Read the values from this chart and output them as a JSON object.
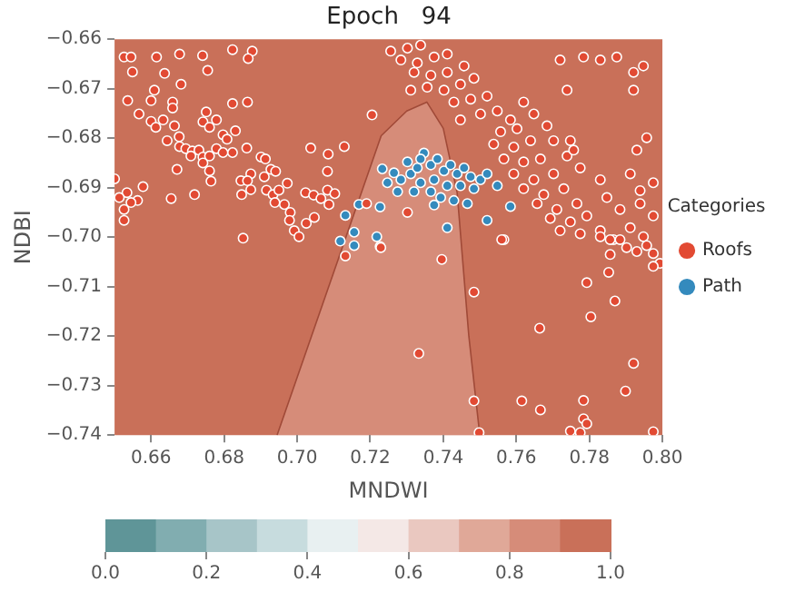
{
  "chart_data": {
    "type": "scatter",
    "title": "Epoch   94",
    "xlabel": "MNDWI",
    "ylabel": "NDBI",
    "legend_title": "Categories",
    "legend": "right",
    "xlim": [
      0.65,
      0.8
    ],
    "xticks": [
      0.66,
      0.68,
      {
        "value": 0.7,
        "label": "0.70"
      },
      0.72,
      0.74,
      0.76,
      0.78,
      {
        "value": 0.8,
        "label": "0.80"
      }
    ],
    "ylim": [
      -0.74,
      -0.66
    ],
    "yticks": [
      -0.74,
      -0.73,
      -0.72,
      -0.71,
      {
        "value": -0.7,
        "label": "−0.70"
      },
      -0.69,
      -0.68,
      -0.67,
      -0.66
    ],
    "clim": [
      0,
      1
    ],
    "cticks": [
      {
        "value": 0,
        "label": "0.0"
      },
      0.2,
      0.4,
      0.6,
      0.8,
      {
        "value": 1,
        "label": "1.0"
      }
    ],
    "series": [
      {
        "type": "area",
        "color": "#d68c79",
        "x": [
          0.6945,
          0.723,
          0.73,
          0.7355,
          0.74,
          0.7438,
          0.747,
          0.75
        ],
        "values": [
          -0.74,
          -0.6795,
          -0.6745,
          -0.6727,
          -0.678,
          -0.691,
          -0.72,
          -0.74
        ]
      },
      {
        "name": "Roofs",
        "color": "#e24a33",
        "marker": "circle",
        "x": [
          0.6526,
          0.6545,
          0.6615,
          0.6678,
          0.6741,
          0.6823,
          0.6877,
          0.6866,
          0.6549,
          0.6637,
          0.6755,
          0.6682,
          0.6609,
          0.6536,
          0.66,
          0.6659,
          0.6659,
          0.6823,
          0.6864,
          0.6567,
          0.6751,
          0.66,
          0.6633,
          0.6742,
          0.6779,
          0.6613,
          0.6664,
          0.676,
          0.6831,
          0.6677,
          0.6797,
          0.6644,
          0.6808,
          0.6678,
          0.6695,
          0.6713,
          0.6731,
          0.6709,
          0.6742,
          0.676,
          0.6779,
          0.6797,
          0.6823,
          0.6742,
          0.6862,
          0.6901,
          0.6913,
          0.7037,
          0.7129,
          0.7085,
          0.6671,
          0.676,
          0.6873,
          0.6928,
          0.6941,
          0.691,
          0.7083,
          0.65,
          0.6578,
          0.6534,
          0.6513,
          0.6563,
          0.6545,
          0.6655,
          0.6719,
          0.6764,
          0.6846,
          0.6864,
          0.6873,
          0.6848,
          0.6916,
          0.6934,
          0.695,
          0.6973,
          0.6939,
          0.6965,
          0.7023,
          0.7045,
          0.7065,
          0.7087,
          0.7083,
          0.7103,
          0.6526,
          0.6526,
          0.6981,
          0.6979,
          0.7025,
          0.7047,
          0.6992,
          0.7005,
          0.6852,
          0.7205,
          0.7132,
          0.719,
          0.7227,
          0.7256,
          0.7302,
          0.7338,
          0.7284,
          0.7329,
          0.7375,
          0.7411,
          0.732,
          0.7366,
          0.7411,
          0.7457,
          0.7311,
          0.7356,
          0.7402,
          0.7447,
          0.7484,
          0.7429,
          0.7475,
          0.752,
          0.7502,
          0.7548,
          0.7447,
          0.7584,
          0.7557,
          0.7602,
          0.7538,
          0.7593,
          0.7639,
          0.7566,
          0.762,
          0.7666,
          0.7593,
          0.7648,
          0.7702,
          0.762,
          0.7675,
          0.773,
          0.7657,
          0.7711,
          0.7766,
          0.7693,
          0.7748,
          0.7793,
          0.772,
          0.7775,
          0.783,
          0.7866,
          0.7912,
          0.7948,
          0.7975,
          0.7939,
          0.7884,
          0.7848,
          0.783,
          0.7775,
          0.7739,
          0.7702,
          0.7684,
          0.7648,
          0.762,
          0.783,
          0.7857,
          0.7884,
          0.7902,
          0.793,
          0.7957,
          0.7975,
          0.7993,
          0.7857,
          0.7975,
          0.772,
          0.7784,
          0.783,
          0.7875,
          0.7921,
          0.7948,
          0.7739,
          0.7921,
          0.7748,
          0.7757,
          0.7957,
          0.793,
          0.7912,
          0.7975,
          0.7939,
          0.7302,
          0.7566,
          0.756,
          0.7396,
          0.7484,
          0.7793,
          0.7853,
          0.787,
          0.7804,
          0.7664,
          0.7333,
          0.7921,
          0.7899,
          0.7484,
          0.7615,
          0.7784,
          0.7666,
          0.7784,
          0.7793,
          0.7748,
          0.7775,
          0.7498,
          0.7975,
          0.7229
        ],
        "values": [
          -0.6636,
          -0.6636,
          -0.6636,
          -0.663,
          -0.6633,
          -0.6621,
          -0.6624,
          -0.6639,
          -0.6666,
          -0.6669,
          -0.6663,
          -0.6691,
          -0.6703,
          -0.6724,
          -0.6724,
          -0.6727,
          -0.6739,
          -0.673,
          -0.6727,
          -0.6751,
          -0.6747,
          -0.6766,
          -0.6763,
          -0.6767,
          -0.6763,
          -0.6778,
          -0.6775,
          -0.6778,
          -0.6785,
          -0.6797,
          -0.6793,
          -0.6805,
          -0.6802,
          -0.6817,
          -0.6821,
          -0.6826,
          -0.6824,
          -0.6836,
          -0.6838,
          -0.6836,
          -0.6821,
          -0.6829,
          -0.6829,
          -0.685,
          -0.682,
          -0.6838,
          -0.6842,
          -0.682,
          -0.6817,
          -0.6832,
          -0.6863,
          -0.6866,
          -0.6872,
          -0.6863,
          -0.6867,
          -0.6878,
          -0.6867,
          -0.6882,
          -0.6898,
          -0.691,
          -0.692,
          -0.6926,
          -0.693,
          -0.6922,
          -0.6914,
          -0.6887,
          -0.6886,
          -0.6886,
          -0.6904,
          -0.6914,
          -0.6905,
          -0.6914,
          -0.6905,
          -0.6891,
          -0.693,
          -0.6934,
          -0.691,
          -0.6915,
          -0.6922,
          -0.6934,
          -0.6905,
          -0.6912,
          -0.6944,
          -0.6966,
          -0.695,
          -0.6966,
          -0.6972,
          -0.696,
          -0.6987,
          -0.6999,
          -0.7002,
          -0.6753,
          -0.7038,
          -0.6932,
          -0.7019,
          -0.6624,
          -0.6618,
          -0.6612,
          -0.6642,
          -0.6648,
          -0.6636,
          -0.663,
          -0.6667,
          -0.6673,
          -0.6667,
          -0.6654,
          -0.6703,
          -0.6697,
          -0.6703,
          -0.6691,
          -0.6679,
          -0.6727,
          -0.6721,
          -0.6715,
          -0.6751,
          -0.6745,
          -0.6763,
          -0.6763,
          -0.6787,
          -0.6781,
          -0.6812,
          -0.6818,
          -0.6805,
          -0.6842,
          -0.6848,
          -0.6842,
          -0.6872,
          -0.6884,
          -0.6872,
          -0.6902,
          -0.6914,
          -0.6902,
          -0.6932,
          -0.6944,
          -0.6932,
          -0.6962,
          -0.6969,
          -0.6957,
          -0.6987,
          -0.6993,
          -0.6987,
          -0.7005,
          -0.6981,
          -0.6999,
          -0.6957,
          -0.6932,
          -0.6944,
          -0.692,
          -0.6884,
          -0.686,
          -0.6836,
          -0.6805,
          -0.6775,
          -0.6751,
          -0.6727,
          -0.6999,
          -0.7005,
          -0.7005,
          -0.7021,
          -0.7029,
          -0.7017,
          -0.7033,
          -0.7053,
          -0.7035,
          -0.7059,
          -0.6642,
          -0.6636,
          -0.6642,
          -0.6636,
          -0.6667,
          -0.6654,
          -0.6703,
          -0.6703,
          -0.6805,
          -0.6824,
          -0.6799,
          -0.6824,
          -0.6872,
          -0.689,
          -0.6906,
          -0.695,
          -0.7005,
          -0.7005,
          -0.7045,
          -0.7111,
          -0.7092,
          -0.7071,
          -0.7129,
          -0.7161,
          -0.7184,
          -0.7235,
          -0.7255,
          -0.7311,
          -0.7331,
          -0.7331,
          -0.733,
          -0.7349,
          -0.7367,
          -0.7377,
          -0.7392,
          -0.7395,
          -0.7395,
          -0.7393,
          -0.7021
        ]
      },
      {
        "name": "Path",
        "color": "#348abd",
        "marker": "circle",
        "x": [
          0.7132,
          0.7169,
          0.7156,
          0.7118,
          0.7156,
          0.7218,
          0.7227,
          0.7233,
          0.7265,
          0.7247,
          0.7284,
          0.7311,
          0.7329,
          0.7347,
          0.7366,
          0.7384,
          0.7402,
          0.742,
          0.7438,
          0.7457,
          0.7475,
          0.7502,
          0.752,
          0.7548,
          0.7338,
          0.7375,
          0.7411,
          0.7447,
          0.7484,
          0.7393,
          0.7429,
          0.7466,
          0.7366,
          0.732,
          0.7275,
          0.7411,
          0.752,
          0.7584,
          0.7375,
          0.7338,
          0.7302
        ],
        "values": [
          -0.6956,
          -0.6934,
          -0.699,
          -0.7008,
          -0.7017,
          -0.6999,
          -0.6939,
          -0.6862,
          -0.687,
          -0.689,
          -0.6884,
          -0.6872,
          -0.686,
          -0.683,
          -0.6854,
          -0.6842,
          -0.6866,
          -0.6854,
          -0.6872,
          -0.686,
          -0.6878,
          -0.6884,
          -0.6872,
          -0.6896,
          -0.689,
          -0.6884,
          -0.6896,
          -0.6896,
          -0.6902,
          -0.692,
          -0.6926,
          -0.6932,
          -0.6908,
          -0.6908,
          -0.6908,
          -0.6981,
          -0.6966,
          -0.6938,
          -0.6935,
          -0.6842,
          -0.6848
        ]
      }
    ]
  }
}
